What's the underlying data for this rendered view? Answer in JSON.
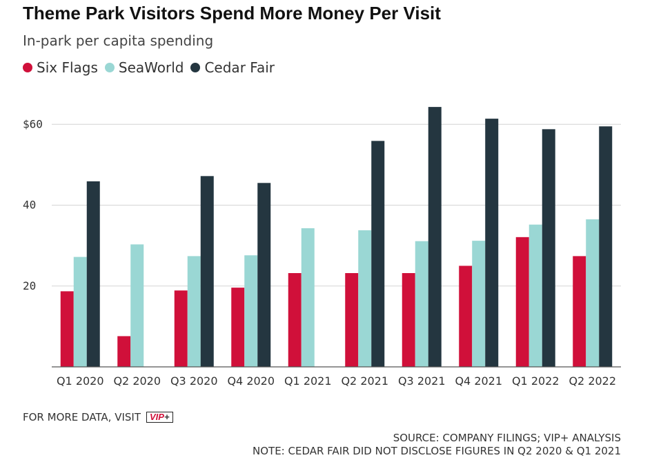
{
  "header": {
    "title": "Theme Park Visitors Spend More Money Per Visit",
    "subtitle": "In-park per capita spending"
  },
  "footer": {
    "visit_text": "FOR MORE DATA, VISIT",
    "badge_text_red": "VIP",
    "badge_text_plus": "+",
    "source": "SOURCE: COMPANY FILINGS; VIP+ ANALYSIS",
    "note": "NOTE: CEDAR FAIR DID NOT DISCLOSE FIGURES IN Q2 2020 & Q1 2021"
  },
  "chart_data": {
    "type": "bar",
    "title": "Theme Park Visitors Spend More Money Per Visit",
    "subtitle": "In-park per capita spending",
    "xlabel": "",
    "ylabel": "",
    "ylim": [
      0,
      65
    ],
    "yticks": [
      {
        "value": 20,
        "label": "20"
      },
      {
        "value": 40,
        "label": "40"
      },
      {
        "value": 60,
        "label": "$60"
      }
    ],
    "grid": true,
    "legend_position": "top-left",
    "categories": [
      "Q1 2020",
      "Q2 2020",
      "Q3 2020",
      "Q4 2020",
      "Q1 2021",
      "Q2 2021",
      "Q3 2021",
      "Q4 2021",
      "Q1 2022",
      "Q2 2022"
    ],
    "series": [
      {
        "name": "Six Flags",
        "color": "#d0103a",
        "values": [
          18.7,
          7.6,
          18.9,
          19.6,
          23.2,
          23.2,
          23.2,
          25.0,
          32.1,
          27.4
        ]
      },
      {
        "name": "SeaWorld",
        "color": "#9ad7d4",
        "values": [
          27.2,
          30.3,
          27.4,
          27.6,
          34.3,
          33.8,
          31.1,
          31.2,
          35.2,
          36.5
        ]
      },
      {
        "name": "Cedar Fair",
        "color": "#243640",
        "values": [
          45.9,
          null,
          47.2,
          45.5,
          null,
          55.9,
          64.3,
          61.4,
          58.8,
          59.5
        ]
      }
    ]
  }
}
